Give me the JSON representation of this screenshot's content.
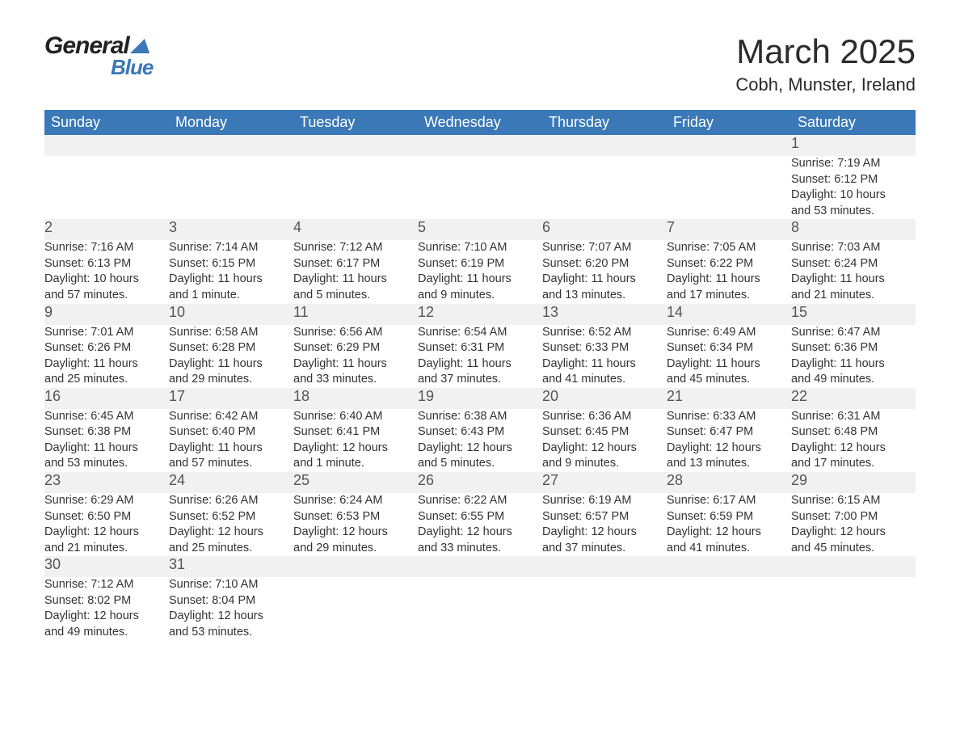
{
  "logo": {
    "text1": "General",
    "text2": "Blue"
  },
  "title": "March 2025",
  "location": "Cobh, Munster, Ireland",
  "colors": {
    "header_bg": "#3a78b8",
    "header_text": "#ffffff",
    "day_number_bg": "#f1f1f1",
    "border_accent": "#3a78b8",
    "text": "#333333",
    "logo_accent": "#3a78b8",
    "background": "#ffffff"
  },
  "typography": {
    "title_fontsize": 42,
    "location_fontsize": 22,
    "header_fontsize": 18,
    "daynum_fontsize": 18,
    "content_fontsize": 14.5,
    "font_family": "Arial"
  },
  "daysOfWeek": [
    "Sunday",
    "Monday",
    "Tuesday",
    "Wednesday",
    "Thursday",
    "Friday",
    "Saturday"
  ],
  "weeks": [
    [
      null,
      null,
      null,
      null,
      null,
      null,
      {
        "day": "1",
        "sunrise": "Sunrise: 7:19 AM",
        "sunset": "Sunset: 6:12 PM",
        "daylight1": "Daylight: 10 hours",
        "daylight2": "and 53 minutes."
      }
    ],
    [
      {
        "day": "2",
        "sunrise": "Sunrise: 7:16 AM",
        "sunset": "Sunset: 6:13 PM",
        "daylight1": "Daylight: 10 hours",
        "daylight2": "and 57 minutes."
      },
      {
        "day": "3",
        "sunrise": "Sunrise: 7:14 AM",
        "sunset": "Sunset: 6:15 PM",
        "daylight1": "Daylight: 11 hours",
        "daylight2": "and 1 minute."
      },
      {
        "day": "4",
        "sunrise": "Sunrise: 7:12 AM",
        "sunset": "Sunset: 6:17 PM",
        "daylight1": "Daylight: 11 hours",
        "daylight2": "and 5 minutes."
      },
      {
        "day": "5",
        "sunrise": "Sunrise: 7:10 AM",
        "sunset": "Sunset: 6:19 PM",
        "daylight1": "Daylight: 11 hours",
        "daylight2": "and 9 minutes."
      },
      {
        "day": "6",
        "sunrise": "Sunrise: 7:07 AM",
        "sunset": "Sunset: 6:20 PM",
        "daylight1": "Daylight: 11 hours",
        "daylight2": "and 13 minutes."
      },
      {
        "day": "7",
        "sunrise": "Sunrise: 7:05 AM",
        "sunset": "Sunset: 6:22 PM",
        "daylight1": "Daylight: 11 hours",
        "daylight2": "and 17 minutes."
      },
      {
        "day": "8",
        "sunrise": "Sunrise: 7:03 AM",
        "sunset": "Sunset: 6:24 PM",
        "daylight1": "Daylight: 11 hours",
        "daylight2": "and 21 minutes."
      }
    ],
    [
      {
        "day": "9",
        "sunrise": "Sunrise: 7:01 AM",
        "sunset": "Sunset: 6:26 PM",
        "daylight1": "Daylight: 11 hours",
        "daylight2": "and 25 minutes."
      },
      {
        "day": "10",
        "sunrise": "Sunrise: 6:58 AM",
        "sunset": "Sunset: 6:28 PM",
        "daylight1": "Daylight: 11 hours",
        "daylight2": "and 29 minutes."
      },
      {
        "day": "11",
        "sunrise": "Sunrise: 6:56 AM",
        "sunset": "Sunset: 6:29 PM",
        "daylight1": "Daylight: 11 hours",
        "daylight2": "and 33 minutes."
      },
      {
        "day": "12",
        "sunrise": "Sunrise: 6:54 AM",
        "sunset": "Sunset: 6:31 PM",
        "daylight1": "Daylight: 11 hours",
        "daylight2": "and 37 minutes."
      },
      {
        "day": "13",
        "sunrise": "Sunrise: 6:52 AM",
        "sunset": "Sunset: 6:33 PM",
        "daylight1": "Daylight: 11 hours",
        "daylight2": "and 41 minutes."
      },
      {
        "day": "14",
        "sunrise": "Sunrise: 6:49 AM",
        "sunset": "Sunset: 6:34 PM",
        "daylight1": "Daylight: 11 hours",
        "daylight2": "and 45 minutes."
      },
      {
        "day": "15",
        "sunrise": "Sunrise: 6:47 AM",
        "sunset": "Sunset: 6:36 PM",
        "daylight1": "Daylight: 11 hours",
        "daylight2": "and 49 minutes."
      }
    ],
    [
      {
        "day": "16",
        "sunrise": "Sunrise: 6:45 AM",
        "sunset": "Sunset: 6:38 PM",
        "daylight1": "Daylight: 11 hours",
        "daylight2": "and 53 minutes."
      },
      {
        "day": "17",
        "sunrise": "Sunrise: 6:42 AM",
        "sunset": "Sunset: 6:40 PM",
        "daylight1": "Daylight: 11 hours",
        "daylight2": "and 57 minutes."
      },
      {
        "day": "18",
        "sunrise": "Sunrise: 6:40 AM",
        "sunset": "Sunset: 6:41 PM",
        "daylight1": "Daylight: 12 hours",
        "daylight2": "and 1 minute."
      },
      {
        "day": "19",
        "sunrise": "Sunrise: 6:38 AM",
        "sunset": "Sunset: 6:43 PM",
        "daylight1": "Daylight: 12 hours",
        "daylight2": "and 5 minutes."
      },
      {
        "day": "20",
        "sunrise": "Sunrise: 6:36 AM",
        "sunset": "Sunset: 6:45 PM",
        "daylight1": "Daylight: 12 hours",
        "daylight2": "and 9 minutes."
      },
      {
        "day": "21",
        "sunrise": "Sunrise: 6:33 AM",
        "sunset": "Sunset: 6:47 PM",
        "daylight1": "Daylight: 12 hours",
        "daylight2": "and 13 minutes."
      },
      {
        "day": "22",
        "sunrise": "Sunrise: 6:31 AM",
        "sunset": "Sunset: 6:48 PM",
        "daylight1": "Daylight: 12 hours",
        "daylight2": "and 17 minutes."
      }
    ],
    [
      {
        "day": "23",
        "sunrise": "Sunrise: 6:29 AM",
        "sunset": "Sunset: 6:50 PM",
        "daylight1": "Daylight: 12 hours",
        "daylight2": "and 21 minutes."
      },
      {
        "day": "24",
        "sunrise": "Sunrise: 6:26 AM",
        "sunset": "Sunset: 6:52 PM",
        "daylight1": "Daylight: 12 hours",
        "daylight2": "and 25 minutes."
      },
      {
        "day": "25",
        "sunrise": "Sunrise: 6:24 AM",
        "sunset": "Sunset: 6:53 PM",
        "daylight1": "Daylight: 12 hours",
        "daylight2": "and 29 minutes."
      },
      {
        "day": "26",
        "sunrise": "Sunrise: 6:22 AM",
        "sunset": "Sunset: 6:55 PM",
        "daylight1": "Daylight: 12 hours",
        "daylight2": "and 33 minutes."
      },
      {
        "day": "27",
        "sunrise": "Sunrise: 6:19 AM",
        "sunset": "Sunset: 6:57 PM",
        "daylight1": "Daylight: 12 hours",
        "daylight2": "and 37 minutes."
      },
      {
        "day": "28",
        "sunrise": "Sunrise: 6:17 AM",
        "sunset": "Sunset: 6:59 PM",
        "daylight1": "Daylight: 12 hours",
        "daylight2": "and 41 minutes."
      },
      {
        "day": "29",
        "sunrise": "Sunrise: 6:15 AM",
        "sunset": "Sunset: 7:00 PM",
        "daylight1": "Daylight: 12 hours",
        "daylight2": "and 45 minutes."
      }
    ],
    [
      {
        "day": "30",
        "sunrise": "Sunrise: 7:12 AM",
        "sunset": "Sunset: 8:02 PM",
        "daylight1": "Daylight: 12 hours",
        "daylight2": "and 49 minutes."
      },
      {
        "day": "31",
        "sunrise": "Sunrise: 7:10 AM",
        "sunset": "Sunset: 8:04 PM",
        "daylight1": "Daylight: 12 hours",
        "daylight2": "and 53 minutes."
      },
      null,
      null,
      null,
      null,
      null
    ]
  ]
}
